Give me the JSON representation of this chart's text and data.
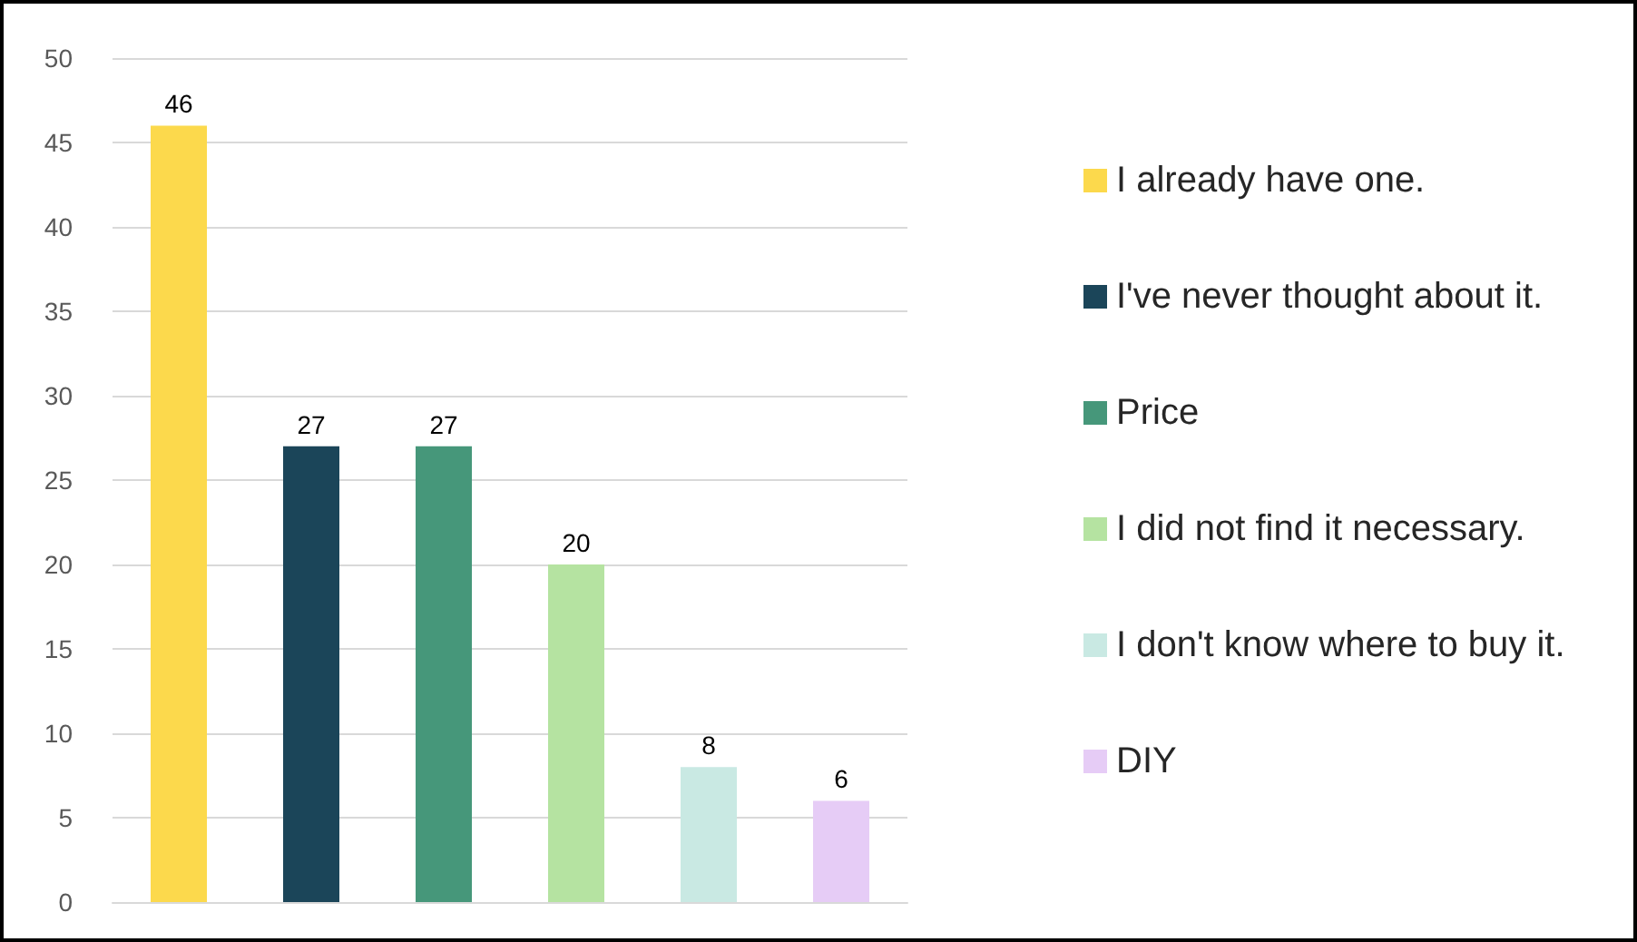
{
  "chart_data": {
    "type": "bar",
    "categories": [
      null,
      null,
      null,
      null,
      null,
      null
    ],
    "series": [
      {
        "name": "I already have one.",
        "color": "#fcd94c",
        "values": [
          46,
          null,
          null,
          null,
          null,
          null
        ]
      },
      {
        "name": "I've never thought about it.",
        "color": "#1b4559",
        "values": [
          null,
          27,
          null,
          null,
          null,
          null
        ]
      },
      {
        "name": "Price",
        "color": "#46977a",
        "values": [
          null,
          null,
          27,
          null,
          null,
          null
        ]
      },
      {
        "name": "I did not find it necessary.",
        "color": "#b5e3a1",
        "values": [
          null,
          null,
          null,
          20,
          null,
          null
        ]
      },
      {
        "name": "I don't know where to buy it.",
        "color": "#c9e9e3",
        "values": [
          null,
          null,
          null,
          null,
          8,
          null
        ]
      },
      {
        "name": "DIY",
        "color": "#e6ccf6",
        "values": [
          null,
          null,
          null,
          null,
          null,
          6
        ]
      }
    ],
    "ylim": [
      0,
      50
    ],
    "yticks": [
      0,
      5,
      10,
      15,
      20,
      25,
      30,
      35,
      40,
      45,
      50
    ],
    "grid": "y",
    "legend": "right",
    "data_labels": true
  }
}
